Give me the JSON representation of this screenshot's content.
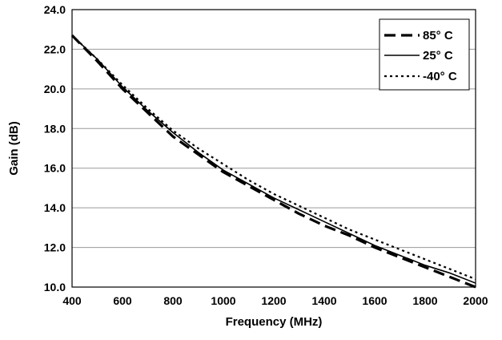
{
  "chart_data": {
    "type": "line",
    "xlabel": "Frequency (MHz)",
    "ylabel": "Gain (dB)",
    "xlim": [
      400,
      2000
    ],
    "ylim": [
      10,
      24
    ],
    "x_ticks": [
      "400",
      "600",
      "800",
      "1000",
      "1200",
      "1400",
      "1600",
      "1800",
      "2000"
    ],
    "y_ticks": [
      "10.0",
      "12.0",
      "14.0",
      "16.0",
      "18.0",
      "20.0",
      "22.0",
      "24.0"
    ],
    "grid": "horizontal",
    "legend_position": "top-right",
    "x": [
      400,
      500,
      600,
      700,
      800,
      900,
      1000,
      1100,
      1200,
      1300,
      1400,
      1500,
      1600,
      1700,
      1800,
      1900,
      2000
    ],
    "series": [
      {
        "name": "85° C",
        "style": "dashed-bold",
        "color": "#000000",
        "values": [
          22.7,
          21.4,
          20.0,
          18.8,
          17.6,
          16.7,
          15.8,
          15.1,
          14.4,
          13.7,
          13.1,
          12.6,
          12.0,
          11.5,
          11.0,
          10.5,
          10.0
        ]
      },
      {
        "name": "25° C",
        "style": "solid",
        "color": "#000000",
        "values": [
          22.7,
          21.5,
          20.1,
          18.9,
          17.8,
          16.8,
          15.9,
          15.2,
          14.5,
          13.9,
          13.3,
          12.7,
          12.1,
          11.6,
          11.1,
          10.7,
          10.2
        ]
      },
      {
        "name": "-40° C",
        "style": "dotted",
        "color": "#000000",
        "values": [
          22.7,
          21.5,
          20.2,
          19.0,
          17.9,
          17.0,
          16.2,
          15.4,
          14.7,
          14.1,
          13.5,
          12.9,
          12.4,
          11.9,
          11.4,
          10.9,
          10.4
        ]
      }
    ]
  }
}
